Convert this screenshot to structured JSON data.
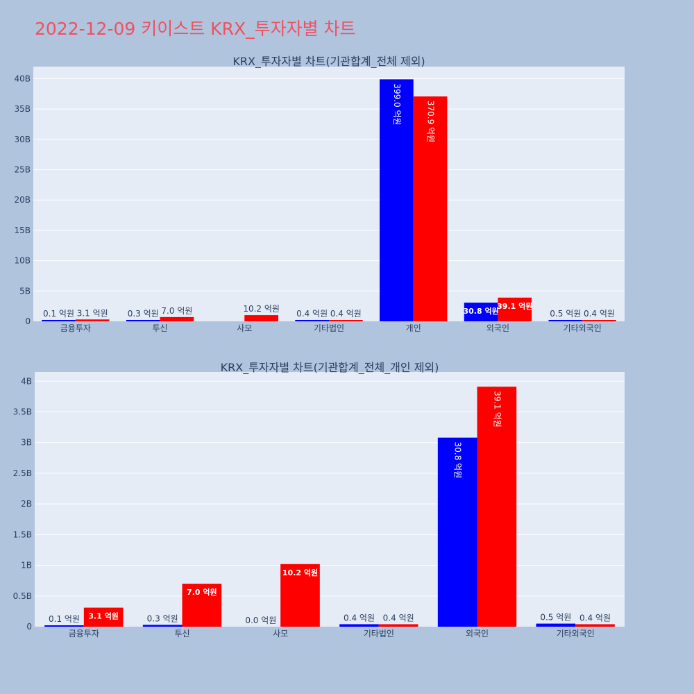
{
  "page": {
    "title": "2022-12-09 키이스트 KRX_투자자별 차트"
  },
  "colors": {
    "page_background": "#b0c4de",
    "plot_background": "#e5ecf6",
    "title_color": "#ef5160",
    "text_color": "#2a3f5f",
    "series_1": "#0000ff",
    "series_2": "#ff0000"
  },
  "chart_data": [
    {
      "type": "bar",
      "title": "KRX_투자자별 차트(기관합계_전체 제외)",
      "xlabel": "",
      "ylabel": "",
      "ylim": [
        0,
        42
      ],
      "yunit": "B",
      "yticks": [
        0,
        5,
        10,
        15,
        20,
        25,
        30,
        35,
        40
      ],
      "ytick_labels": [
        "0",
        "5B",
        "10B",
        "15B",
        "20B",
        "25B",
        "30B",
        "35B",
        "40B"
      ],
      "grid": true,
      "categories": [
        "금융투자",
        "투신",
        "사모",
        "기타법인",
        "개인",
        "외국인",
        "기타외국인"
      ],
      "series": [
        {
          "color": "#0000ff",
          "values": [
            0.01,
            0.03,
            0.0,
            0.04,
            39.9,
            3.08,
            0.05
          ],
          "labels": [
            "0.1 억원",
            "0.3 억원",
            "",
            "0.4 억원",
            "399.0 억원",
            "30.8 억원",
            "0.5 억원"
          ]
        },
        {
          "color": "#ff0000",
          "values": [
            0.31,
            0.7,
            1.02,
            0.04,
            37.09,
            3.91,
            0.04
          ],
          "labels": [
            "3.1 억원",
            "7.0 억원",
            "10.2 억원",
            "0.4 억원",
            "370.9 억원",
            "39.1 억원",
            "0.4 억원"
          ]
        }
      ]
    },
    {
      "type": "bar",
      "title": "KRX_투자자별 차트(기관합계_전체_개인 제외)",
      "xlabel": "",
      "ylabel": "",
      "ylim": [
        0,
        4.15
      ],
      "yunit": "B",
      "yticks": [
        0,
        0.5,
        1,
        1.5,
        2,
        2.5,
        3,
        3.5,
        4
      ],
      "ytick_labels": [
        "0",
        "0.5B",
        "1B",
        "1.5B",
        "2B",
        "2.5B",
        "3B",
        "3.5B",
        "4B"
      ],
      "grid": true,
      "categories": [
        "금융투자",
        "투신",
        "사모",
        "기타법인",
        "외국인",
        "기타외국인"
      ],
      "series": [
        {
          "color": "#0000ff",
          "values": [
            0.01,
            0.03,
            0.0,
            0.04,
            3.08,
            0.05
          ],
          "labels": [
            "0.1 억원",
            "0.3 억원",
            "0.0 억원",
            "0.4 억원",
            "30.8 억원",
            "0.5 억원"
          ]
        },
        {
          "color": "#ff0000",
          "values": [
            0.31,
            0.7,
            1.02,
            0.04,
            3.91,
            0.04
          ],
          "labels": [
            "3.1 억원",
            "7.0 억원",
            "10.2 억원",
            "0.4 억원",
            "39.1 억원",
            "0.4 억원"
          ]
        }
      ]
    }
  ]
}
